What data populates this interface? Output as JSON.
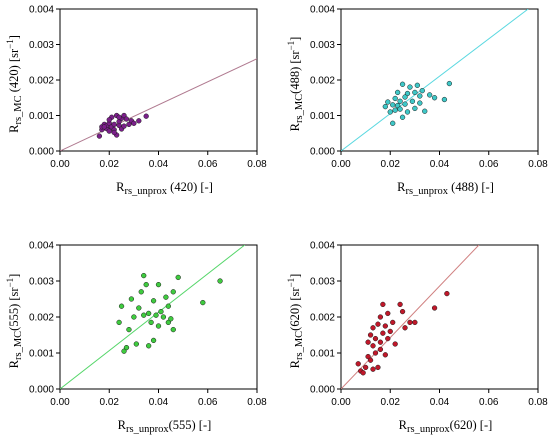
{
  "chart_data": [
    {
      "type": "scatter",
      "xlabel": {
        "main": "R",
        "sub": "rs_unprox",
        "tail": " (420) [-]"
      },
      "ylabel": {
        "main": "R",
        "sub": "rs_MC",
        "tail": " (420) [sr",
        "sup": "−1",
        "close": "]"
      },
      "xlim": [
        0,
        0.08
      ],
      "ylim": [
        0,
        0.004
      ],
      "xticks": [
        "0.00",
        "0.02",
        "0.04",
        "0.06",
        "0.08"
      ],
      "yticks": [
        "0.000",
        "0.001",
        "0.002",
        "0.003",
        "0.004"
      ],
      "line": {
        "x": [
          0,
          0.08
        ],
        "y": [
          0,
          0.0026
        ]
      },
      "line_color": "#b07a90",
      "marker_color": "#7b1f8a",
      "points": [
        [
          0.016,
          0.00042
        ],
        [
          0.017,
          0.0006
        ],
        [
          0.017,
          0.00068
        ],
        [
          0.018,
          0.00075
        ],
        [
          0.019,
          0.00063
        ],
        [
          0.019,
          0.00072
        ],
        [
          0.02,
          0.00078
        ],
        [
          0.02,
          0.00056
        ],
        [
          0.021,
          0.00068
        ],
        [
          0.021,
          0.00095
        ],
        [
          0.022,
          0.0006
        ],
        [
          0.022,
          0.00075
        ],
        [
          0.023,
          0.001
        ],
        [
          0.023,
          0.00045
        ],
        [
          0.024,
          0.00072
        ],
        [
          0.024,
          0.00083
        ],
        [
          0.025,
          0.00062
        ],
        [
          0.025,
          0.00092
        ],
        [
          0.026,
          0.001
        ],
        [
          0.027,
          0.0009
        ],
        [
          0.028,
          0.00075
        ],
        [
          0.029,
          0.00085
        ],
        [
          0.03,
          0.00078
        ],
        [
          0.032,
          0.00085
        ],
        [
          0.035,
          0.00098
        ],
        [
          0.018,
          0.00068
        ],
        [
          0.02,
          0.00088
        ],
        [
          0.022,
          0.00052
        ],
        [
          0.024,
          0.00095
        ],
        [
          0.026,
          0.0007
        ]
      ]
    },
    {
      "type": "scatter",
      "xlabel": {
        "main": "R",
        "sub": "rs_unprox",
        "tail": " (488) [-]"
      },
      "ylabel": {
        "main": "R",
        "sub": "rs_MC",
        "tail": "(488) [sr",
        "sup": "−1",
        "close": "]"
      },
      "xlim": [
        0,
        0.08
      ],
      "ylim": [
        0,
        0.004
      ],
      "xticks": [
        "0.00",
        "0.02",
        "0.04",
        "0.06",
        "0.08"
      ],
      "yticks": [
        "0.000",
        "0.001",
        "0.002",
        "0.003",
        "0.004"
      ],
      "line": {
        "x": [
          0,
          0.076
        ],
        "y": [
          0,
          0.004
        ]
      },
      "line_color": "#5ad8e0",
      "marker_color": "#3ec7c7",
      "points": [
        [
          0.018,
          0.00125
        ],
        [
          0.019,
          0.00138
        ],
        [
          0.02,
          0.0011
        ],
        [
          0.021,
          0.00078
        ],
        [
          0.021,
          0.0013
        ],
        [
          0.022,
          0.00148
        ],
        [
          0.023,
          0.00128
        ],
        [
          0.023,
          0.00165
        ],
        [
          0.024,
          0.00118
        ],
        [
          0.024,
          0.0014
        ],
        [
          0.025,
          0.00188
        ],
        [
          0.025,
          0.00095
        ],
        [
          0.026,
          0.00132
        ],
        [
          0.027,
          0.00162
        ],
        [
          0.027,
          0.0011
        ],
        [
          0.028,
          0.0018
        ],
        [
          0.029,
          0.0014
        ],
        [
          0.03,
          0.00165
        ],
        [
          0.03,
          0.0012
        ],
        [
          0.031,
          0.00185
        ],
        [
          0.032,
          0.00155
        ],
        [
          0.032,
          0.00135
        ],
        [
          0.033,
          0.0017
        ],
        [
          0.034,
          0.00112
        ],
        [
          0.036,
          0.00158
        ],
        [
          0.038,
          0.0015
        ],
        [
          0.042,
          0.00145
        ],
        [
          0.044,
          0.0019
        ],
        [
          0.022,
          0.00115
        ],
        [
          0.026,
          0.00152
        ]
      ]
    },
    {
      "type": "scatter",
      "xlabel": {
        "main": "R",
        "sub": "rs_unprox",
        "tail": "(555) [-]"
      },
      "ylabel": {
        "main": "R",
        "sub": "rs_MC",
        "tail": "(555) [sr",
        "sup": "−1",
        "close": "]"
      },
      "xlim": [
        0,
        0.08
      ],
      "ylim": [
        0,
        0.004
      ],
      "xticks": [
        "0.00",
        "0.02",
        "0.04",
        "0.06",
        "0.08"
      ],
      "yticks": [
        "0.000",
        "0.001",
        "0.002",
        "0.003",
        "0.004"
      ],
      "line": {
        "x": [
          0,
          0.075
        ],
        "y": [
          0,
          0.004
        ]
      },
      "line_color": "#55d66a",
      "marker_color": "#3fcb3f",
      "points": [
        [
          0.024,
          0.00185
        ],
        [
          0.025,
          0.0023
        ],
        [
          0.026,
          0.00105
        ],
        [
          0.027,
          0.00115
        ],
        [
          0.028,
          0.00165
        ],
        [
          0.029,
          0.0025
        ],
        [
          0.03,
          0.002
        ],
        [
          0.031,
          0.00125
        ],
        [
          0.032,
          0.00225
        ],
        [
          0.033,
          0.0027
        ],
        [
          0.034,
          0.00205
        ],
        [
          0.034,
          0.00315
        ],
        [
          0.035,
          0.0029
        ],
        [
          0.036,
          0.0021
        ],
        [
          0.037,
          0.00185
        ],
        [
          0.038,
          0.00245
        ],
        [
          0.038,
          0.00135
        ],
        [
          0.039,
          0.00205
        ],
        [
          0.04,
          0.00175
        ],
        [
          0.04,
          0.0029
        ],
        [
          0.041,
          0.00215
        ],
        [
          0.042,
          0.002
        ],
        [
          0.043,
          0.00255
        ],
        [
          0.044,
          0.00185
        ],
        [
          0.045,
          0.00195
        ],
        [
          0.046,
          0.0027
        ],
        [
          0.046,
          0.00165
        ],
        [
          0.048,
          0.0031
        ],
        [
          0.058,
          0.0024
        ],
        [
          0.065,
          0.003
        ],
        [
          0.036,
          0.0012
        ],
        [
          0.044,
          0.0023
        ]
      ]
    },
    {
      "type": "scatter",
      "xlabel": {
        "main": "R",
        "sub": "rs_unprox",
        "tail": "(620) [-]"
      },
      "ylabel": {
        "main": "R",
        "sub": "rs_MC",
        "tail": "(620) [sr",
        "sup": "−1",
        "close": "]"
      },
      "xlim": [
        0,
        0.08
      ],
      "ylim": [
        0,
        0.004
      ],
      "xticks": [
        "0.00",
        "0.02",
        "0.04",
        "0.06",
        "0.08"
      ],
      "yticks": [
        "0.000",
        "0.001",
        "0.002",
        "0.003",
        "0.004"
      ],
      "line": {
        "x": [
          0,
          0.056
        ],
        "y": [
          0,
          0.004
        ]
      },
      "line_color": "#d08080",
      "marker_color": "#c0182a",
      "points": [
        [
          0.007,
          0.0007
        ],
        [
          0.008,
          0.0005
        ],
        [
          0.009,
          0.00045
        ],
        [
          0.01,
          0.0006
        ],
        [
          0.011,
          0.0013
        ],
        [
          0.011,
          0.0009
        ],
        [
          0.012,
          0.0015
        ],
        [
          0.012,
          0.0008
        ],
        [
          0.013,
          0.0012
        ],
        [
          0.013,
          0.0017
        ],
        [
          0.014,
          0.001
        ],
        [
          0.014,
          0.0014
        ],
        [
          0.015,
          0.0018
        ],
        [
          0.015,
          0.0006
        ],
        [
          0.016,
          0.0013
        ],
        [
          0.016,
          0.002
        ],
        [
          0.016,
          0.0011
        ],
        [
          0.017,
          0.00155
        ],
        [
          0.017,
          0.00235
        ],
        [
          0.018,
          0.00175
        ],
        [
          0.018,
          0.00095
        ],
        [
          0.019,
          0.0014
        ],
        [
          0.019,
          0.0021
        ],
        [
          0.02,
          0.0016
        ],
        [
          0.021,
          0.00185
        ],
        [
          0.022,
          0.00125
        ],
        [
          0.024,
          0.00235
        ],
        [
          0.025,
          0.00215
        ],
        [
          0.026,
          0.0017
        ],
        [
          0.028,
          0.00185
        ],
        [
          0.03,
          0.00185
        ],
        [
          0.038,
          0.00225
        ],
        [
          0.043,
          0.00265
        ],
        [
          0.013,
          0.00055
        ]
      ]
    }
  ]
}
